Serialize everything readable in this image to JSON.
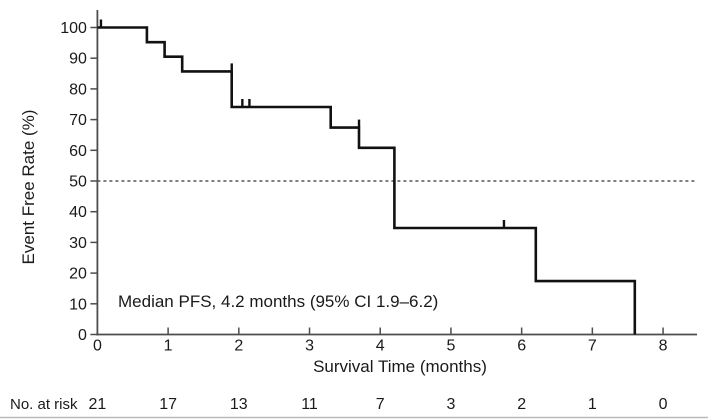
{
  "chart_data": {
    "type": "line",
    "subtype": "kaplan-meier-step",
    "title": "",
    "xlabel": "Survival Time (months)",
    "ylabel": "Event Free Rate (%)",
    "xlim": [
      0,
      8.48
    ],
    "ylim": [
      0,
      105.7
    ],
    "grid": false,
    "legend_position": "none",
    "x_ticks": [
      0,
      1,
      2,
      3,
      4,
      5,
      6,
      7,
      8
    ],
    "y_ticks": [
      0,
      10,
      20,
      30,
      40,
      50,
      60,
      70,
      80,
      90,
      100
    ],
    "series": [
      {
        "name": "Event Free Rate",
        "step_times": [
          0,
          0.7,
          0.95,
          1.2,
          1.9,
          3.3,
          3.7,
          4.2,
          6.2,
          7.6
        ],
        "step_values": [
          100,
          95.2,
          90.5,
          85.7,
          74.1,
          67.4,
          60.8,
          34.7,
          17.4,
          0
        ]
      }
    ],
    "censor_marks": [
      {
        "t": 0.05,
        "v": 100
      },
      {
        "t": 1.9,
        "v": 85.7
      },
      {
        "t": 2.05,
        "v": 74.1
      },
      {
        "t": 2.15,
        "v": 74.1
      },
      {
        "t": 3.7,
        "v": 67.4
      },
      {
        "t": 5.75,
        "v": 34.7
      }
    ],
    "reference_line": {
      "value": 50,
      "style": "dashed"
    },
    "annotation": "Median PFS, 4.2 months (95% CI 1.9–6.2)",
    "at_risk": {
      "label": "No. at risk",
      "times": [
        0,
        1,
        2,
        3,
        4,
        5,
        6,
        7,
        8
      ],
      "counts": [
        21,
        17,
        13,
        11,
        7,
        3,
        2,
        1,
        0
      ]
    }
  },
  "colors": {
    "curve": "#111111",
    "axis": "#4d4d4d",
    "tick": "#4d4d4d",
    "text": "#1a1a1a",
    "reference_line": "#333333",
    "bottom_rule": "#b9b9b9",
    "background": "#ffffff"
  }
}
